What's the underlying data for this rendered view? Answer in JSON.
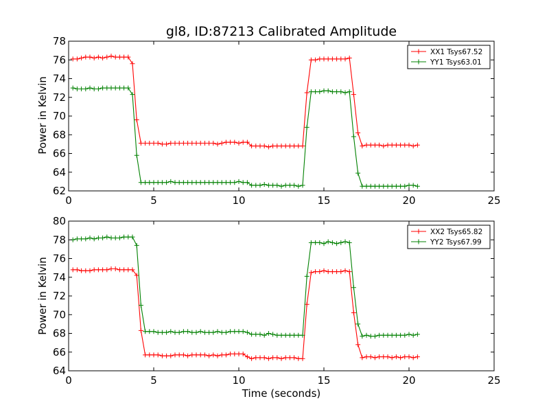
{
  "chart_data": [
    {
      "type": "line",
      "title": "gl8, ID:87213 Calibrated Amplitude",
      "xlabel": "",
      "ylabel": "Power in Kelvin",
      "xlim": [
        0,
        25
      ],
      "ylim": [
        62,
        78
      ],
      "xticks": [
        "0",
        "5",
        "10",
        "15",
        "20",
        "25"
      ],
      "yticks": [
        "62",
        "64",
        "66",
        "68",
        "70",
        "72",
        "74",
        "76",
        "78"
      ],
      "grid": false,
      "legend": "top-right",
      "x": [
        0.25,
        0.5,
        0.75,
        1.0,
        1.25,
        1.5,
        1.75,
        2.0,
        2.25,
        2.5,
        2.75,
        3.0,
        3.25,
        3.5,
        3.75,
        4.0,
        4.25,
        4.5,
        4.75,
        5.0,
        5.25,
        5.5,
        5.75,
        6.0,
        6.25,
        6.5,
        6.75,
        7.0,
        7.25,
        7.5,
        7.75,
        8.0,
        8.25,
        8.5,
        8.75,
        9.0,
        9.25,
        9.5,
        9.75,
        10.0,
        10.25,
        10.5,
        10.75,
        11.0,
        11.25,
        11.5,
        11.75,
        12.0,
        12.25,
        12.5,
        12.75,
        13.0,
        13.25,
        13.5,
        13.75,
        14.0,
        14.25,
        14.5,
        14.75,
        15.0,
        15.25,
        15.5,
        15.75,
        16.0,
        16.25,
        16.5,
        16.75,
        17.0,
        17.25,
        17.5,
        17.75,
        18.0,
        18.25,
        18.5,
        18.75,
        19.0,
        19.25,
        19.5,
        19.75,
        20.0,
        20.25,
        20.5
      ],
      "series": [
        {
          "name": "XX1 Tsys67.52",
          "color": "#ff0000",
          "values": [
            76.1,
            76.1,
            76.2,
            76.3,
            76.3,
            76.2,
            76.3,
            76.2,
            76.3,
            76.4,
            76.3,
            76.3,
            76.3,
            76.3,
            75.6,
            69.6,
            67.1,
            67.1,
            67.1,
            67.1,
            67.1,
            67.0,
            67.0,
            67.1,
            67.1,
            67.1,
            67.1,
            67.1,
            67.1,
            67.1,
            67.1,
            67.1,
            67.1,
            67.1,
            67.0,
            67.1,
            67.2,
            67.2,
            67.2,
            67.1,
            67.2,
            67.2,
            66.8,
            66.8,
            66.8,
            66.8,
            66.7,
            66.8,
            66.8,
            66.8,
            66.8,
            66.8,
            66.8,
            66.8,
            66.8,
            72.5,
            76.0,
            76.0,
            76.1,
            76.1,
            76.1,
            76.1,
            76.1,
            76.1,
            76.1,
            76.2,
            72.3,
            68.2,
            66.8,
            66.9,
            66.9,
            66.9,
            66.9,
            66.8,
            66.9,
            66.9,
            66.9,
            66.9,
            66.9,
            66.9,
            66.8,
            66.9
          ]
        },
        {
          "name": "YY1 Tsys63.01",
          "color": "#008000",
          "values": [
            73.0,
            72.9,
            72.9,
            72.9,
            73.0,
            72.9,
            72.9,
            73.0,
            73.0,
            73.0,
            73.0,
            73.0,
            73.0,
            73.0,
            72.3,
            65.8,
            62.9,
            62.9,
            62.9,
            62.9,
            62.9,
            62.9,
            62.9,
            63.0,
            62.9,
            62.9,
            62.9,
            62.9,
            62.9,
            62.9,
            62.9,
            62.9,
            62.9,
            62.9,
            62.9,
            62.9,
            62.9,
            62.9,
            62.9,
            63.0,
            62.9,
            62.9,
            62.6,
            62.6,
            62.6,
            62.7,
            62.6,
            62.6,
            62.6,
            62.5,
            62.6,
            62.6,
            62.6,
            62.5,
            62.6,
            68.8,
            72.6,
            72.6,
            72.6,
            72.7,
            72.7,
            72.6,
            72.6,
            72.6,
            72.5,
            72.6,
            67.8,
            63.9,
            62.5,
            62.5,
            62.5,
            62.5,
            62.5,
            62.5,
            62.5,
            62.5,
            62.5,
            62.5,
            62.5,
            62.6,
            62.6,
            62.5
          ]
        }
      ]
    },
    {
      "type": "line",
      "title": "",
      "xlabel": "Time (seconds)",
      "ylabel": "Power in Kelvin",
      "xlim": [
        0,
        25
      ],
      "ylim": [
        64,
        80
      ],
      "xticks": [
        "0",
        "5",
        "10",
        "15",
        "20",
        "25"
      ],
      "yticks": [
        "64",
        "66",
        "68",
        "70",
        "72",
        "74",
        "76",
        "78",
        "80"
      ],
      "grid": false,
      "legend": "top-right",
      "x": [
        0.25,
        0.5,
        0.75,
        1.0,
        1.25,
        1.5,
        1.75,
        2.0,
        2.25,
        2.5,
        2.75,
        3.0,
        3.25,
        3.5,
        3.75,
        4.0,
        4.25,
        4.5,
        4.75,
        5.0,
        5.25,
        5.5,
        5.75,
        6.0,
        6.25,
        6.5,
        6.75,
        7.0,
        7.25,
        7.5,
        7.75,
        8.0,
        8.25,
        8.5,
        8.75,
        9.0,
        9.25,
        9.5,
        9.75,
        10.0,
        10.25,
        10.5,
        10.75,
        11.0,
        11.25,
        11.5,
        11.75,
        12.0,
        12.25,
        12.5,
        12.75,
        13.0,
        13.25,
        13.5,
        13.75,
        14.0,
        14.25,
        14.5,
        14.75,
        15.0,
        15.25,
        15.5,
        15.75,
        16.0,
        16.25,
        16.5,
        16.75,
        17.0,
        17.25,
        17.5,
        17.75,
        18.0,
        18.25,
        18.5,
        18.75,
        19.0,
        19.25,
        19.5,
        19.75,
        20.0,
        20.25,
        20.5
      ],
      "series": [
        {
          "name": "XX2 Tsys65.82",
          "color": "#ff0000",
          "values": [
            74.8,
            74.8,
            74.7,
            74.7,
            74.7,
            74.8,
            74.8,
            74.8,
            74.8,
            74.9,
            74.9,
            74.8,
            74.8,
            74.8,
            74.8,
            74.2,
            68.3,
            65.7,
            65.7,
            65.7,
            65.7,
            65.6,
            65.6,
            65.6,
            65.7,
            65.7,
            65.7,
            65.6,
            65.7,
            65.7,
            65.7,
            65.7,
            65.6,
            65.7,
            65.6,
            65.7,
            65.7,
            65.8,
            65.8,
            65.8,
            65.8,
            65.5,
            65.3,
            65.4,
            65.4,
            65.4,
            65.3,
            65.4,
            65.4,
            65.3,
            65.4,
            65.4,
            65.4,
            65.3,
            65.3,
            71.1,
            74.5,
            74.6,
            74.6,
            74.7,
            74.6,
            74.6,
            74.6,
            74.6,
            74.7,
            74.6,
            70.2,
            66.8,
            65.4,
            65.5,
            65.5,
            65.4,
            65.5,
            65.5,
            65.5,
            65.4,
            65.5,
            65.4,
            65.5,
            65.5,
            65.4,
            65.5
          ]
        },
        {
          "name": "YY2 Tsys67.99",
          "color": "#008000",
          "values": [
            78.0,
            78.1,
            78.1,
            78.1,
            78.2,
            78.1,
            78.2,
            78.2,
            78.3,
            78.2,
            78.2,
            78.2,
            78.3,
            78.3,
            78.3,
            77.4,
            71.0,
            68.2,
            68.2,
            68.2,
            68.1,
            68.1,
            68.1,
            68.2,
            68.1,
            68.1,
            68.2,
            68.2,
            68.1,
            68.1,
            68.2,
            68.1,
            68.1,
            68.1,
            68.2,
            68.1,
            68.1,
            68.2,
            68.2,
            68.2,
            68.2,
            68.1,
            67.9,
            67.9,
            67.9,
            67.8,
            68.0,
            67.9,
            67.8,
            67.8,
            67.8,
            67.8,
            67.8,
            67.8,
            67.8,
            74.1,
            77.7,
            77.7,
            77.7,
            77.6,
            77.8,
            77.7,
            77.6,
            77.7,
            77.8,
            77.7,
            72.9,
            69.0,
            67.7,
            67.8,
            67.7,
            67.7,
            67.8,
            67.8,
            67.8,
            67.8,
            67.8,
            67.8,
            67.8,
            67.9,
            67.8,
            67.9
          ]
        }
      ]
    }
  ]
}
